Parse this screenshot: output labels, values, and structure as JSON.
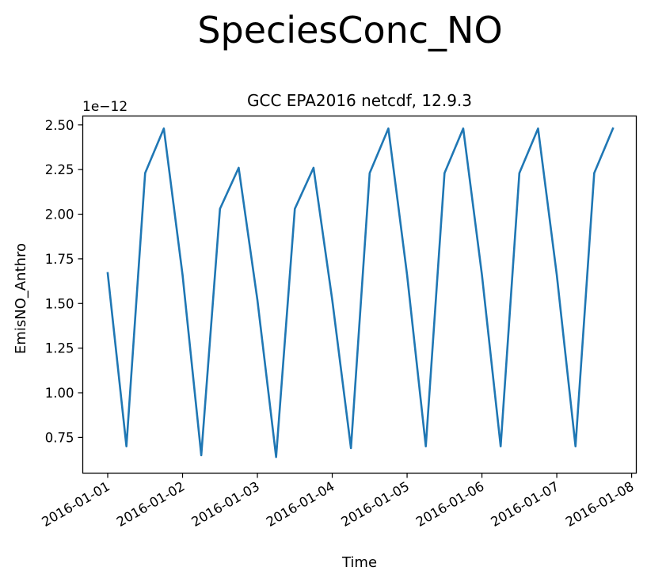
{
  "figure": {
    "suptitle": "SpeciesConc_NO"
  },
  "chart_data": {
    "type": "line",
    "title": "GCC EPA2016 netcdf, 12.9.3",
    "xlabel": "Time",
    "ylabel": "EmisNO_Anthro",
    "y_offset_label": "1e−12",
    "y_scale_multiplier": 1e-12,
    "xlim": [
      "2015-12-31T16:00",
      "2016-01-08T01:30"
    ],
    "ylim": [
      0.55,
      2.55
    ],
    "x_ticks": [
      "2016-01-01",
      "2016-01-02",
      "2016-01-03",
      "2016-01-04",
      "2016-01-05",
      "2016-01-06",
      "2016-01-07",
      "2016-01-08"
    ],
    "y_ticks": [
      "0.75",
      "1.00",
      "1.25",
      "1.50",
      "1.75",
      "2.00",
      "2.25",
      "2.50"
    ],
    "grid": false,
    "legend": "none",
    "line_color": "#1f77b4",
    "series": [
      {
        "x": [
          "2016-01-01T00:00",
          "2016-01-01T06:00",
          "2016-01-01T12:00",
          "2016-01-01T18:00",
          "2016-01-02T00:00",
          "2016-01-02T06:00",
          "2016-01-02T12:00",
          "2016-01-02T18:00",
          "2016-01-03T00:00",
          "2016-01-03T06:00",
          "2016-01-03T12:00",
          "2016-01-03T18:00",
          "2016-01-04T00:00",
          "2016-01-04T06:00",
          "2016-01-04T12:00",
          "2016-01-04T18:00",
          "2016-01-05T00:00",
          "2016-01-05T06:00",
          "2016-01-05T12:00",
          "2016-01-05T18:00",
          "2016-01-06T00:00",
          "2016-01-06T06:00",
          "2016-01-06T12:00",
          "2016-01-06T18:00",
          "2016-01-07T00:00",
          "2016-01-07T06:00",
          "2016-01-07T12:00",
          "2016-01-07T18:00"
        ],
        "y": [
          1.67,
          0.7,
          2.23,
          2.48,
          1.66,
          0.65,
          2.03,
          2.26,
          1.52,
          0.64,
          2.03,
          2.26,
          1.52,
          0.69,
          2.23,
          2.48,
          1.66,
          0.7,
          2.23,
          2.48,
          1.66,
          0.7,
          2.23,
          2.48,
          1.66,
          0.7,
          2.23,
          2.48
        ]
      }
    ]
  }
}
